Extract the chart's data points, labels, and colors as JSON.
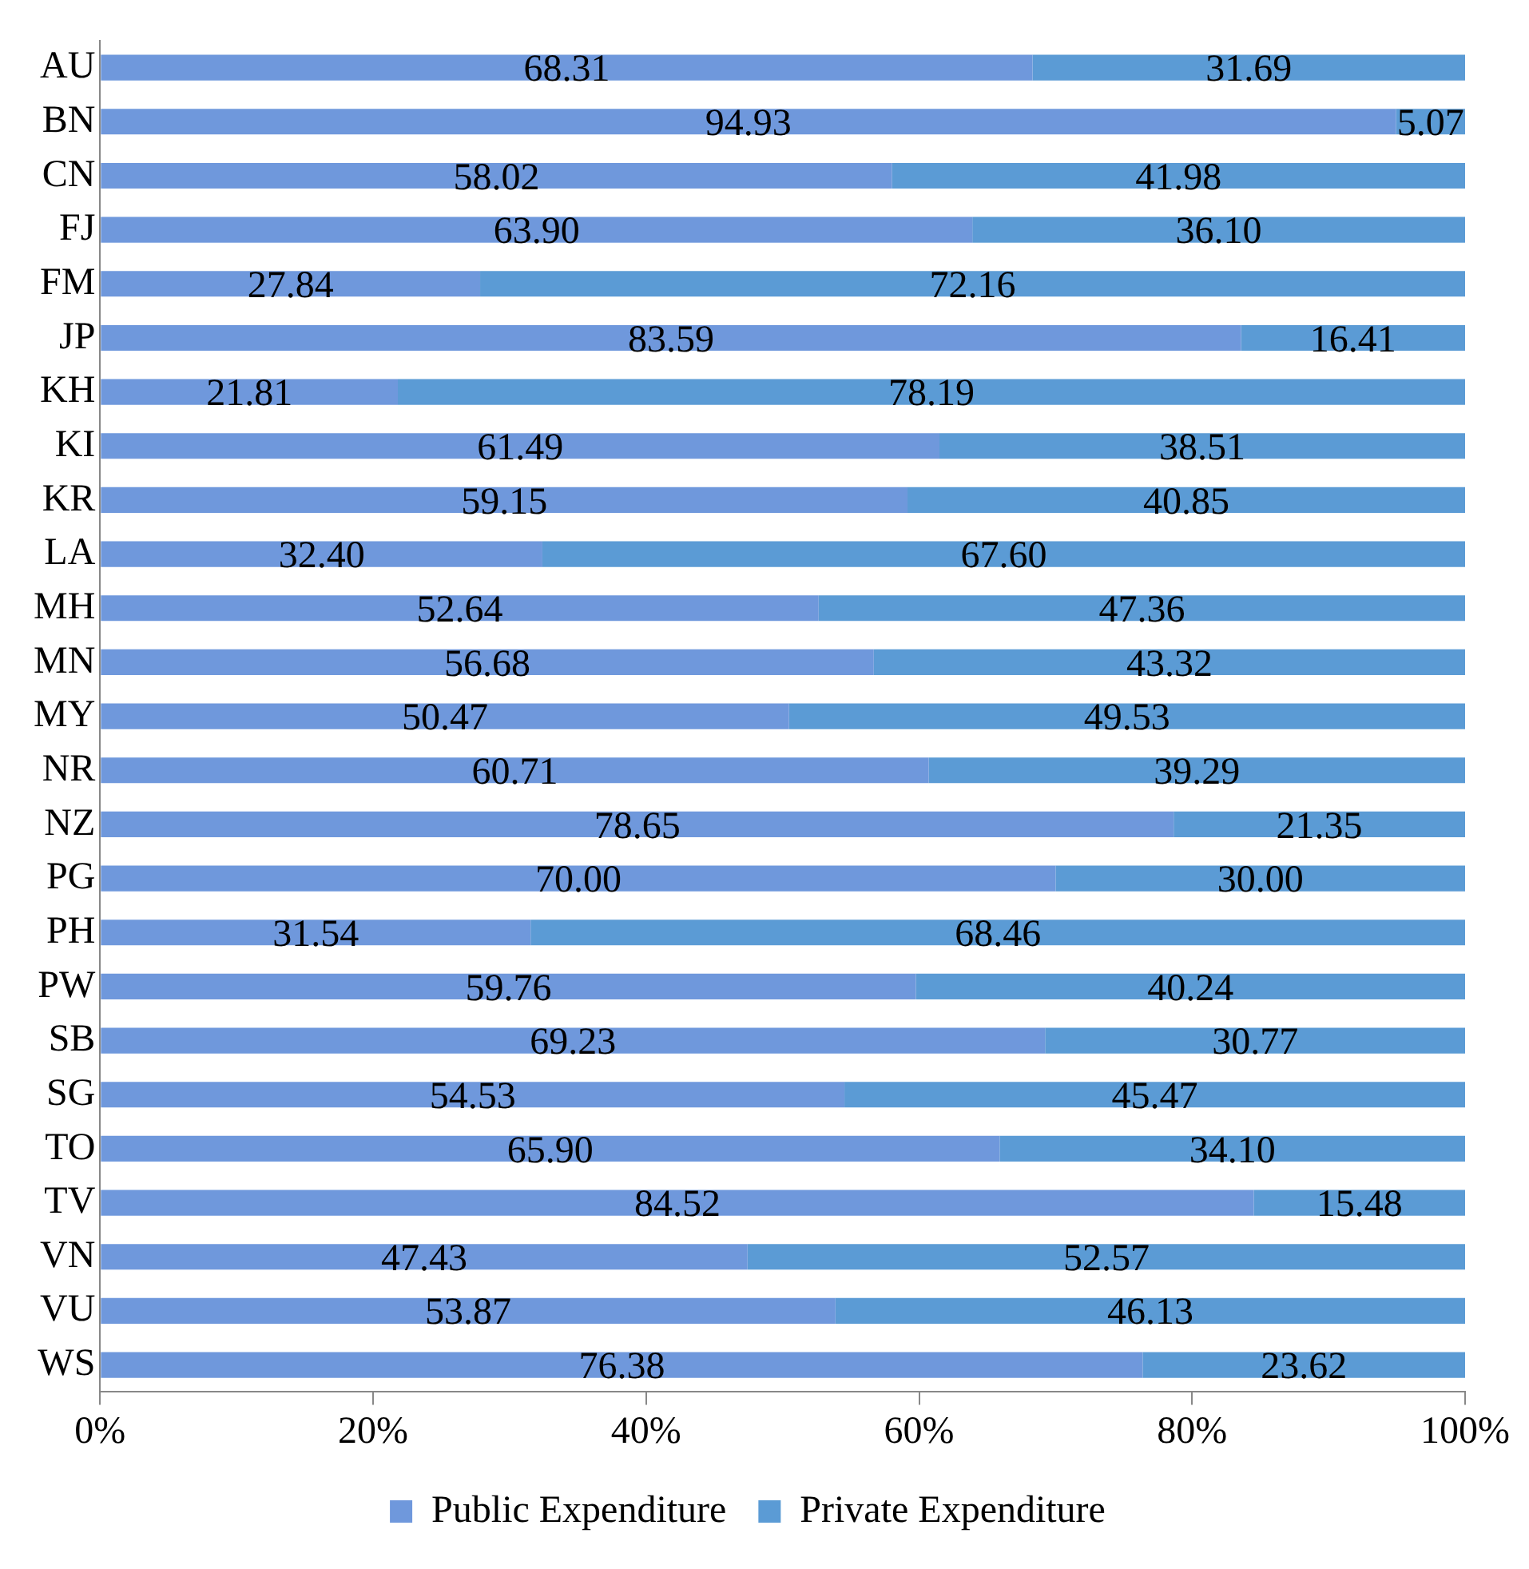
{
  "chart_data": {
    "type": "bar",
    "orientation": "horizontal",
    "stacked": true,
    "legend": "bottom",
    "categories": [
      "AU",
      "BN",
      "CN",
      "FJ",
      "FM",
      "JP",
      "KH",
      "KI",
      "KR",
      "LA",
      "MH",
      "MN",
      "MY",
      "NR",
      "NZ",
      "PG",
      "PH",
      "PW",
      "SB",
      "SG",
      "TO",
      "TV",
      "VN",
      "VU",
      "WS"
    ],
    "series": [
      {
        "name": "Public Expenditure",
        "color": "#6f98dc",
        "values": [
          68.31,
          94.93,
          58.02,
          63.9,
          27.84,
          83.59,
          21.81,
          61.49,
          59.15,
          32.4,
          52.64,
          56.68,
          50.47,
          60.71,
          78.65,
          70,
          31.54,
          59.76,
          69.23,
          54.53,
          65.9,
          84.52,
          47.43,
          53.87,
          76.38
        ],
        "value_labels": [
          "68.31",
          "94.93",
          "58.02",
          "63.90",
          "27.84",
          "83.59",
          "21.81",
          "61.49",
          "59.15",
          "32.40",
          "52.64",
          "56.68",
          "50.47",
          "60.71",
          "78.65",
          "70.00",
          "31.54",
          "59.76",
          "69.23",
          "54.53",
          "65.90",
          "84.52",
          "47.43",
          "53.87",
          "76.38"
        ]
      },
      {
        "name": "Private Expenditure",
        "color": "#5b9bd5",
        "values": [
          31.69,
          5.07,
          41.98,
          36.1,
          72.16,
          16.41,
          78.19,
          38.51,
          40.85,
          67.6,
          47.36,
          43.32,
          49.53,
          39.29,
          21.35,
          30,
          68.46,
          40.24,
          30.77,
          45.47,
          34.1,
          15.48,
          52.57,
          46.13,
          23.62
        ],
        "value_labels": [
          "31.69",
          "5.07",
          "41.98",
          "36.10",
          "72.16",
          "16.41",
          "78.19",
          "38.51",
          "40.85",
          "67.60",
          "47.36",
          "43.32",
          "49.53",
          "39.29",
          "21.35",
          "30.00",
          "68.46",
          "40.24",
          "30.77",
          "45.47",
          "34.10",
          "15.48",
          "52.57",
          "46.13",
          "23.62"
        ]
      }
    ],
    "xlim": [
      0,
      100
    ],
    "xticks": [
      {
        "value": 0,
        "label": "0%"
      },
      {
        "value": 20,
        "label": "20%"
      },
      {
        "value": 40,
        "label": "40%"
      },
      {
        "value": 60,
        "label": "60%"
      },
      {
        "value": 80,
        "label": "80%"
      },
      {
        "value": 100,
        "label": "100%"
      }
    ]
  }
}
